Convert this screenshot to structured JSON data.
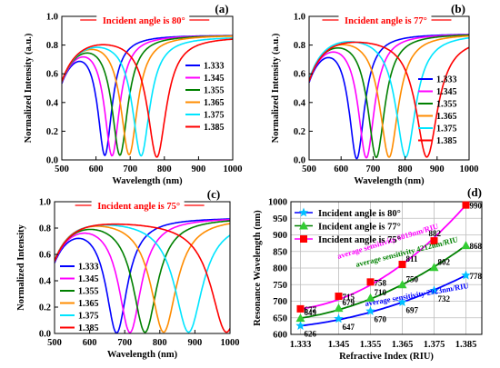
{
  "chart_data": [
    {
      "type": "line",
      "panel_label": "(a)",
      "title": "Incident angle is 80°",
      "xlabel": "Wavelength (nm)",
      "ylabel": "Normalized Intensity (a.u.)",
      "xlim": [
        500,
        1000
      ],
      "ylim": [
        0.0,
        1.0
      ],
      "xticks": [
        "500",
        "600",
        "700",
        "800",
        "900",
        "1000"
      ],
      "yticks": [
        "0.0",
        "0.2",
        "0.4",
        "0.6",
        "0.8",
        "1.0"
      ],
      "legend_position": "right",
      "series": [
        {
          "name": "1.333",
          "color": "#0000ff",
          "resonance_nm": 626,
          "min_intensity": 0.05,
          "width": 38,
          "baseline": 0.87
        },
        {
          "name": "1.345",
          "color": "#ff00ff",
          "resonance_nm": 647,
          "min_intensity": 0.04,
          "width": 40,
          "baseline": 0.87
        },
        {
          "name": "1.355",
          "color": "#008000",
          "resonance_nm": 670,
          "min_intensity": 0.04,
          "width": 42,
          "baseline": 0.87
        },
        {
          "name": "1.365",
          "color": "#ff8c00",
          "resonance_nm": 697,
          "min_intensity": 0.04,
          "width": 44,
          "baseline": 0.87
        },
        {
          "name": "1.375",
          "color": "#00e5ff",
          "resonance_nm": 732,
          "min_intensity": 0.03,
          "width": 46,
          "baseline": 0.86
        },
        {
          "name": "1.385",
          "color": "#ff0000",
          "resonance_nm": 778,
          "min_intensity": 0.02,
          "width": 50,
          "baseline": 0.86
        }
      ]
    },
    {
      "type": "line",
      "panel_label": "(b)",
      "title": "Incident angle is 77°",
      "xlabel": "Wavelength (nm)",
      "ylabel": "Normalized Intensity (a.u.)",
      "xlim": [
        500,
        1000
      ],
      "ylim": [
        0.0,
        1.0
      ],
      "xticks": [
        "500",
        "600",
        "700",
        "800",
        "900",
        "1000"
      ],
      "yticks": [
        "0.0",
        "0.2",
        "0.4",
        "0.6",
        "0.8",
        "1.0"
      ],
      "legend_position": "right",
      "series": [
        {
          "name": "1.333",
          "color": "#0000ff",
          "resonance_nm": 649,
          "min_intensity": 0.02,
          "width": 44,
          "baseline": 0.88
        },
        {
          "name": "1.345",
          "color": "#ff00ff",
          "resonance_nm": 679,
          "min_intensity": 0.02,
          "width": 46,
          "baseline": 0.88
        },
        {
          "name": "1.355",
          "color": "#008000",
          "resonance_nm": 710,
          "min_intensity": 0.02,
          "width": 48,
          "baseline": 0.88
        },
        {
          "name": "1.365",
          "color": "#ff8c00",
          "resonance_nm": 750,
          "min_intensity": 0.02,
          "width": 52,
          "baseline": 0.88
        },
        {
          "name": "1.375",
          "color": "#00e5ff",
          "resonance_nm": 802,
          "min_intensity": 0.02,
          "width": 56,
          "baseline": 0.88
        },
        {
          "name": "1.385",
          "color": "#ff0000",
          "resonance_nm": 868,
          "min_intensity": 0.02,
          "width": 62,
          "baseline": 0.86
        }
      ]
    },
    {
      "type": "line",
      "panel_label": "(c)",
      "title": "Incident angle is 75°",
      "xlabel": "Wavelength (nm)",
      "ylabel": "Normalized Intensity",
      "xlim": [
        500,
        1000
      ],
      "ylim": [
        0.0,
        1.0
      ],
      "xticks": [
        "500",
        "600",
        "700",
        "800",
        "900",
        "1000"
      ],
      "yticks": [
        "0.0",
        "0.2",
        "0.4",
        "0.6",
        "0.8",
        "1.0"
      ],
      "legend_position": "lower-left",
      "series": [
        {
          "name": "1.333",
          "color": "#0000ff",
          "resonance_nm": 677,
          "min_intensity": 0.01,
          "width": 55,
          "baseline": 0.88
        },
        {
          "name": "1.345",
          "color": "#ff00ff",
          "resonance_nm": 715,
          "min_intensity": 0.01,
          "width": 58,
          "baseline": 0.88
        },
        {
          "name": "1.355",
          "color": "#008000",
          "resonance_nm": 758,
          "min_intensity": 0.01,
          "width": 62,
          "baseline": 0.88
        },
        {
          "name": "1.365",
          "color": "#ff8c00",
          "resonance_nm": 811,
          "min_intensity": 0.01,
          "width": 66,
          "baseline": 0.88
        },
        {
          "name": "1.375",
          "color": "#00e5ff",
          "resonance_nm": 882,
          "min_intensity": 0.01,
          "width": 72,
          "baseline": 0.87
        },
        {
          "name": "1.385",
          "color": "#ff0000",
          "resonance_nm": 990,
          "min_intensity": 0.01,
          "width": 80,
          "baseline": 0.86
        }
      ]
    },
    {
      "type": "line",
      "panel_label": "(d)",
      "xlabel": "Refractive Index (RIU)",
      "ylabel": "Resonance Wavelength (nm)",
      "xlim": [
        1.33,
        1.39
      ],
      "ylim": [
        600,
        1000
      ],
      "categories": [
        "1.333",
        "1.345",
        "1.355",
        "1.365",
        "1.375",
        "1.385"
      ],
      "x": [
        1.333,
        1.345,
        1.355,
        1.365,
        1.375,
        1.385
      ],
      "yticks": [
        "600",
        "650",
        "700",
        "750",
        "800",
        "850",
        "900",
        "950",
        "1000"
      ],
      "grid": true,
      "legend_position": "top-left",
      "series": [
        {
          "name": "Incident angle is 80°",
          "color": "#00bfff",
          "marker": "star",
          "values": [
            626,
            647,
            670,
            697,
            732,
            778
          ],
          "labels": [
            "626",
            "647",
            "670",
            "697",
            "732",
            "778"
          ],
          "fit_color": "#0000ff"
        },
        {
          "name": "Incident angle is 77°",
          "color": "#33cc33",
          "marker": "triangle",
          "values": [
            649,
            679,
            710,
            750,
            802,
            868
          ],
          "labels": [
            "649",
            "679",
            "710",
            "750",
            "802",
            "868"
          ],
          "fit_color": "#008000"
        },
        {
          "name": "Incident angle is 75°",
          "color": "#ff0000",
          "marker": "square",
          "values": [
            677,
            715,
            758,
            811,
            882,
            990
          ],
          "labels": [
            "677",
            "715",
            "758",
            "811",
            "882",
            "990"
          ],
          "fit_color": "#ff00ff"
        }
      ],
      "annotations": [
        {
          "text": "average sensitivity 6019nm/RIU",
          "color": "#ff00ff"
        },
        {
          "text": "average sensitivity 4212nm/RIU",
          "color": "#008000"
        },
        {
          "text": "average sensitivity 2923nm/RIU",
          "color": "#0000ff"
        }
      ]
    }
  ]
}
